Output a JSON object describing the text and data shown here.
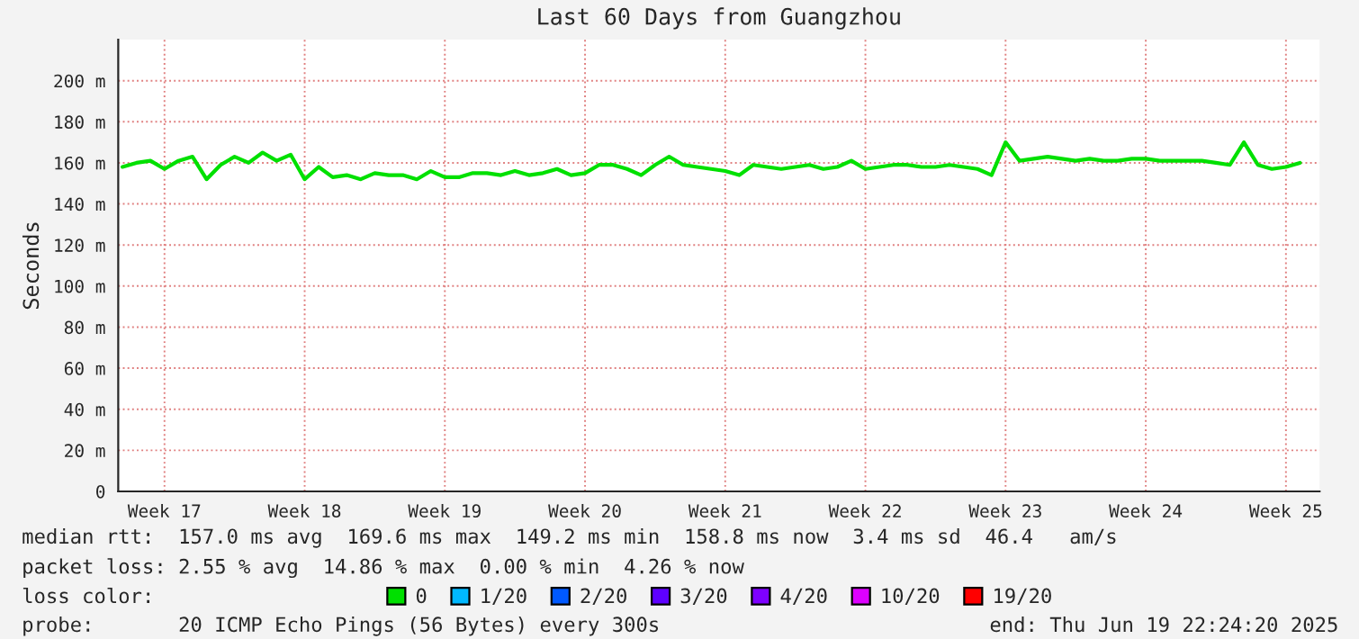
{
  "chart_data": {
    "type": "line",
    "title": "Last 60 Days from Guangzhou",
    "ylabel": "Seconds",
    "categories": [
      null,
      null,
      null,
      "Week 17",
      null,
      null,
      null,
      null,
      null,
      null,
      null,
      null,
      null,
      "Week 18",
      null,
      null,
      null,
      null,
      null,
      null,
      null,
      null,
      null,
      "Week 19",
      null,
      null,
      null,
      null,
      null,
      null,
      null,
      null,
      null,
      "Week 20",
      null,
      null,
      null,
      null,
      null,
      null,
      null,
      null,
      null,
      "Week 21",
      null,
      null,
      null,
      null,
      null,
      null,
      null,
      null,
      null,
      "Week 22",
      null,
      null,
      null,
      null,
      null,
      null,
      null,
      null,
      null,
      "Week 23",
      null,
      null,
      null,
      null,
      null,
      null,
      null,
      null,
      null,
      "Week 24",
      null,
      null,
      null,
      null,
      null,
      null,
      null,
      null,
      null,
      "Week 25",
      null
    ],
    "series": [
      {
        "name": "0",
        "color": "#00e000",
        "values": [
          158,
          160,
          161,
          157,
          161,
          163,
          152,
          159,
          163,
          160,
          165,
          161,
          164,
          152,
          158,
          153,
          154,
          152,
          155,
          154,
          154,
          152,
          156,
          153,
          153,
          155,
          155,
          154,
          156,
          154,
          155,
          157,
          154,
          155,
          159,
          159,
          157,
          154,
          159,
          163,
          159,
          158,
          157,
          156,
          154,
          159,
          158,
          157,
          158,
          159,
          157,
          158,
          161,
          157,
          158,
          159,
          159,
          158,
          158,
          159,
          158,
          157,
          154,
          170,
          161,
          162,
          163,
          162,
          161,
          162,
          161,
          161,
          162,
          162,
          161,
          161,
          161,
          161,
          160,
          159,
          170,
          159,
          157,
          158,
          160
        ]
      },
      {
        "name": "1/20",
        "color": "#00b8ff",
        "values": [
          null,
          null,
          null,
          null,
          null,
          null,
          null,
          null,
          null,
          null,
          null,
          null,
          null,
          null,
          null,
          null,
          null,
          null,
          null,
          null,
          null,
          null,
          null,
          null,
          null,
          null,
          null,
          null,
          null,
          null,
          null,
          null,
          null,
          null,
          null,
          null,
          null,
          null,
          null,
          null,
          null,
          null,
          null,
          null,
          null,
          null,
          null,
          null,
          null,
          null,
          null,
          null,
          null,
          null,
          null,
          null,
          null,
          null,
          null,
          null,
          null,
          null,
          null,
          null,
          null,
          null,
          null,
          null,
          null,
          null,
          null,
          null,
          null,
          null,
          null,
          null,
          null,
          null,
          null,
          null,
          null,
          null,
          null,
          null,
          null
        ]
      },
      {
        "name": "2/20",
        "color": "#0059ff",
        "values": [
          null,
          null,
          null,
          null,
          null,
          null,
          null,
          null,
          null,
          null,
          null,
          null,
          null,
          null,
          null,
          null,
          null,
          null,
          null,
          null,
          null,
          null,
          null,
          null,
          null,
          null,
          null,
          null,
          null,
          null,
          null,
          null,
          null,
          null,
          null,
          null,
          null,
          null,
          null,
          null,
          null,
          null,
          null,
          null,
          null,
          null,
          null,
          null,
          null,
          null,
          null,
          null,
          null,
          null,
          null,
          null,
          null,
          null,
          null,
          null,
          null,
          null,
          null,
          null,
          null,
          null,
          null,
          null,
          null,
          null,
          null,
          null,
          null,
          null,
          null,
          null,
          null,
          null,
          null,
          null,
          null,
          null,
          null,
          null,
          null
        ]
      },
      {
        "name": "3/20",
        "color": "#5e00ff",
        "values": [
          null,
          null,
          null,
          null,
          null,
          null,
          null,
          null,
          null,
          null,
          null,
          null,
          null,
          null,
          null,
          null,
          null,
          null,
          null,
          null,
          null,
          null,
          null,
          null,
          null,
          null,
          null,
          null,
          null,
          null,
          null,
          null,
          null,
          null,
          null,
          null,
          null,
          null,
          null,
          null,
          null,
          null,
          null,
          null,
          null,
          null,
          null,
          null,
          null,
          null,
          null,
          null,
          null,
          null,
          null,
          null,
          null,
          null,
          null,
          null,
          null,
          null,
          null,
          null,
          null,
          null,
          null,
          null,
          null,
          null,
          null,
          null,
          null,
          null,
          null,
          null,
          null,
          null,
          null,
          null,
          null,
          null,
          null,
          null,
          null
        ]
      },
      {
        "name": "4/20",
        "color": "#7e00ff",
        "values": [
          null,
          null,
          null,
          null,
          null,
          null,
          null,
          null,
          null,
          null,
          null,
          null,
          null,
          null,
          null,
          null,
          null,
          null,
          null,
          null,
          null,
          null,
          null,
          null,
          null,
          null,
          null,
          null,
          null,
          null,
          null,
          null,
          null,
          null,
          null,
          null,
          null,
          null,
          null,
          null,
          null,
          null,
          null,
          null,
          null,
          null,
          null,
          null,
          null,
          null,
          null,
          null,
          null,
          null,
          null,
          null,
          null,
          null,
          null,
          null,
          null,
          null,
          null,
          null,
          null,
          null,
          null,
          null,
          null,
          null,
          null,
          null,
          null,
          null,
          null,
          null,
          null,
          null,
          null,
          null,
          null,
          null,
          null,
          null,
          null
        ]
      },
      {
        "name": "10/20",
        "color": "#dd00ff",
        "values": [
          null,
          null,
          null,
          null,
          null,
          null,
          null,
          null,
          null,
          null,
          null,
          null,
          null,
          null,
          null,
          null,
          null,
          null,
          null,
          null,
          null,
          null,
          null,
          null,
          null,
          null,
          null,
          null,
          null,
          null,
          null,
          null,
          null,
          null,
          null,
          null,
          null,
          null,
          null,
          null,
          null,
          null,
          null,
          null,
          null,
          null,
          null,
          null,
          null,
          null,
          null,
          null,
          null,
          null,
          null,
          null,
          null,
          null,
          null,
          null,
          null,
          null,
          null,
          null,
          null,
          null,
          null,
          null,
          null,
          null,
          null,
          null,
          null,
          null,
          null,
          null,
          null,
          null,
          null,
          null,
          null,
          null,
          null,
          null,
          null
        ]
      },
      {
        "name": "19/20",
        "color": "#ff0000",
        "values": [
          null,
          null,
          null,
          null,
          null,
          null,
          null,
          null,
          null,
          null,
          null,
          null,
          null,
          null,
          null,
          null,
          null,
          null,
          null,
          null,
          null,
          null,
          null,
          null,
          null,
          null,
          null,
          null,
          null,
          null,
          null,
          null,
          null,
          null,
          null,
          null,
          null,
          null,
          null,
          null,
          null,
          null,
          null,
          null,
          null,
          null,
          null,
          null,
          null,
          null,
          null,
          null,
          null,
          null,
          null,
          null,
          null,
          null,
          null,
          null,
          null,
          null,
          null,
          null,
          null,
          null,
          null,
          null,
          null,
          null,
          null,
          null,
          null,
          null,
          null,
          null,
          null,
          null,
          null,
          null,
          null,
          null,
          null,
          null,
          null
        ]
      }
    ],
    "legend_title": "loss color:",
    "legend": "bottom",
    "ylim": [
      0,
      220
    ],
    "yticks": [
      0,
      {
        "value": 20,
        "label": "20 m"
      },
      {
        "value": 40,
        "label": "40 m"
      },
      {
        "value": 60,
        "label": "60 m"
      },
      {
        "value": 80,
        "label": "80 m"
      },
      {
        "value": 100,
        "label": "100 m"
      },
      {
        "value": 120,
        "label": "120 m"
      },
      {
        "value": 140,
        "label": "140 m"
      },
      {
        "value": 160,
        "label": "160 m"
      },
      {
        "value": 180,
        "label": "180 m"
      },
      {
        "value": 200,
        "label": "200 m"
      }
    ],
    "grid": true,
    "line_style": "solid",
    "annotations": [
      "median rtt:  157.0 ms avg  169.6 ms max  149.2 ms min  158.8 ms now  3.4 ms sd  46.4   am/s",
      "packet loss: 2.55 % avg  14.86 % max  0.00 % min  4.26 % now",
      "probe:       20 ICMP Echo Pings (56 Bytes) every 300s",
      "end: Thu Jun 19 22:24:20 2025"
    ]
  }
}
